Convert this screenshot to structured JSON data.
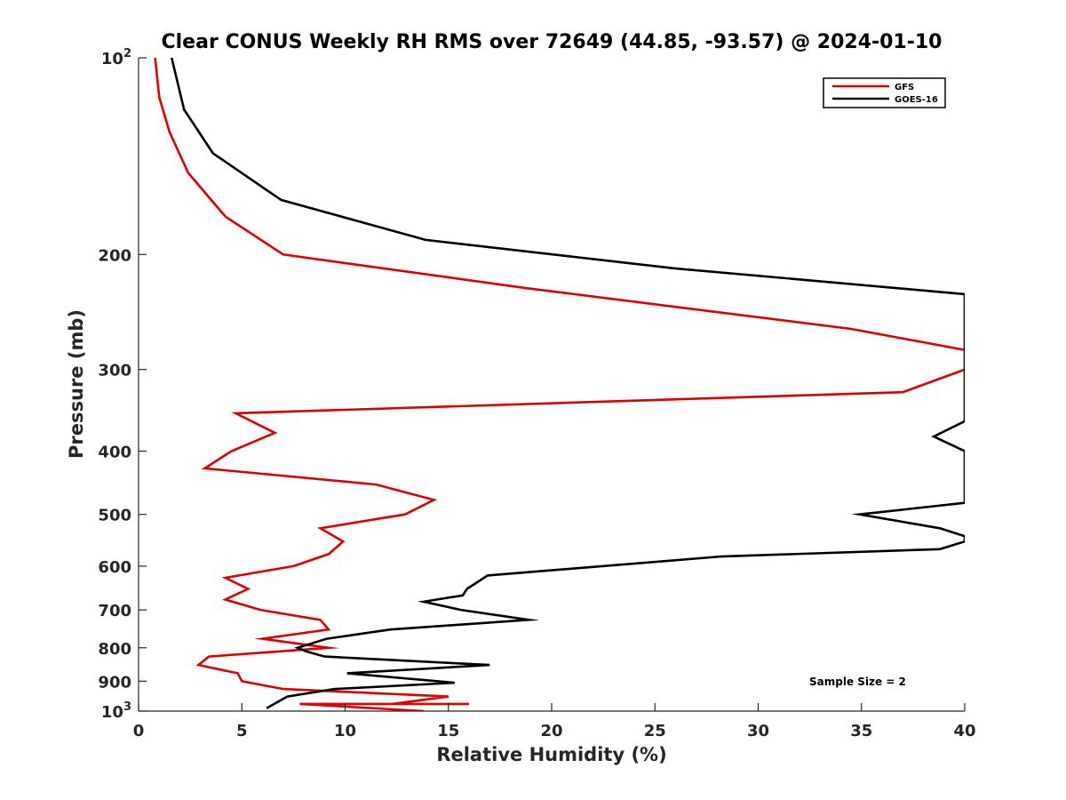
{
  "chart_data": {
    "type": "line",
    "title": "Clear CONUS Weekly RH RMS over 72649 (44.85, -93.57) @ 2024-01-10",
    "xlabel": "Relative Humidity (%)",
    "ylabel": "Pressure (mb)",
    "xlim": [
      0,
      40
    ],
    "ylim": [
      100,
      1000
    ],
    "yscale": "log",
    "y_reversed": true,
    "grid": false,
    "legend_position": "top-right",
    "x_ticks": [
      0,
      5,
      10,
      15,
      20,
      25,
      30,
      35,
      40
    ],
    "x_tick_labels": [
      "0",
      "5",
      "10",
      "15",
      "20",
      "25",
      "30",
      "35",
      "40"
    ],
    "y_ticks": [
      100,
      200,
      300,
      400,
      500,
      600,
      700,
      800,
      900,
      1000
    ],
    "y_tick_labels": [
      {
        "base": "10",
        "exp": "2"
      },
      {
        "base": "200",
        "exp": ""
      },
      {
        "base": "300",
        "exp": ""
      },
      {
        "base": "400",
        "exp": ""
      },
      {
        "base": "500",
        "exp": ""
      },
      {
        "base": "600",
        "exp": ""
      },
      {
        "base": "700",
        "exp": ""
      },
      {
        "base": "800",
        "exp": ""
      },
      {
        "base": "900",
        "exp": ""
      },
      {
        "base": "10",
        "exp": "3"
      }
    ],
    "annotation": "Sample Size = 2",
    "series": [
      {
        "name": "GFS",
        "color": "#e00000",
        "points": [
          [
            0.8,
            100
          ],
          [
            1.0,
            115
          ],
          [
            1.5,
            130
          ],
          [
            2.4,
            150
          ],
          [
            4.2,
            175
          ],
          [
            7.0,
            200
          ],
          [
            18.7,
            225
          ],
          [
            34.5,
            260
          ],
          [
            40.0,
            280
          ],
          [
            40.5,
            290
          ],
          [
            40.0,
            300
          ],
          [
            37.0,
            325
          ],
          [
            4.7,
            350
          ],
          [
            6.6,
            375
          ],
          [
            4.5,
            400
          ],
          [
            3.2,
            425
          ],
          [
            11.5,
            450
          ],
          [
            14.3,
            475
          ],
          [
            12.9,
            500
          ],
          [
            8.8,
            525
          ],
          [
            9.9,
            550
          ],
          [
            9.2,
            575
          ],
          [
            7.5,
            600
          ],
          [
            4.2,
            625
          ],
          [
            5.3,
            650
          ],
          [
            4.2,
            675
          ],
          [
            5.9,
            700
          ],
          [
            8.8,
            725
          ],
          [
            9.2,
            750
          ],
          [
            6.0,
            775
          ],
          [
            9.2,
            800
          ],
          [
            3.4,
            825
          ],
          [
            2.9,
            850
          ],
          [
            4.8,
            875
          ],
          [
            5.0,
            900
          ],
          [
            7.0,
            925
          ],
          [
            15.0,
            950
          ],
          [
            12.3,
            975
          ],
          [
            9.6,
            975
          ],
          [
            16.0,
            975
          ],
          [
            14.0,
            975
          ],
          [
            12.7,
            975
          ],
          [
            7.8,
            975
          ],
          [
            13.8,
            1000
          ]
        ]
      },
      {
        "name": "GOES-16",
        "color": "#000000",
        "points": [
          [
            1.6,
            100
          ],
          [
            2.2,
            120
          ],
          [
            3.6,
            140
          ],
          [
            6.9,
            165
          ],
          [
            13.9,
            190
          ],
          [
            25.9,
            210
          ],
          [
            40.0,
            230
          ],
          [
            40.0,
            360
          ],
          [
            38.5,
            380
          ],
          [
            40.0,
            400
          ],
          [
            40.0,
            480
          ],
          [
            34.9,
            500
          ],
          [
            38.8,
            525
          ],
          [
            40.0,
            540
          ],
          [
            40.0,
            550
          ],
          [
            38.8,
            565
          ],
          [
            28.2,
            580
          ],
          [
            16.9,
            620
          ],
          [
            15.9,
            650
          ],
          [
            15.7,
            665
          ],
          [
            13.8,
            680
          ],
          [
            15.6,
            700
          ],
          [
            18.9,
            725
          ],
          [
            12.2,
            750
          ],
          [
            9.1,
            775
          ],
          [
            7.7,
            800
          ],
          [
            8.1,
            810
          ],
          [
            9.0,
            825
          ],
          [
            17.0,
            850
          ],
          [
            10.1,
            875
          ],
          [
            15.3,
            905
          ],
          [
            9.5,
            925
          ],
          [
            7.2,
            950
          ],
          [
            6.2,
            990
          ]
        ]
      }
    ]
  }
}
